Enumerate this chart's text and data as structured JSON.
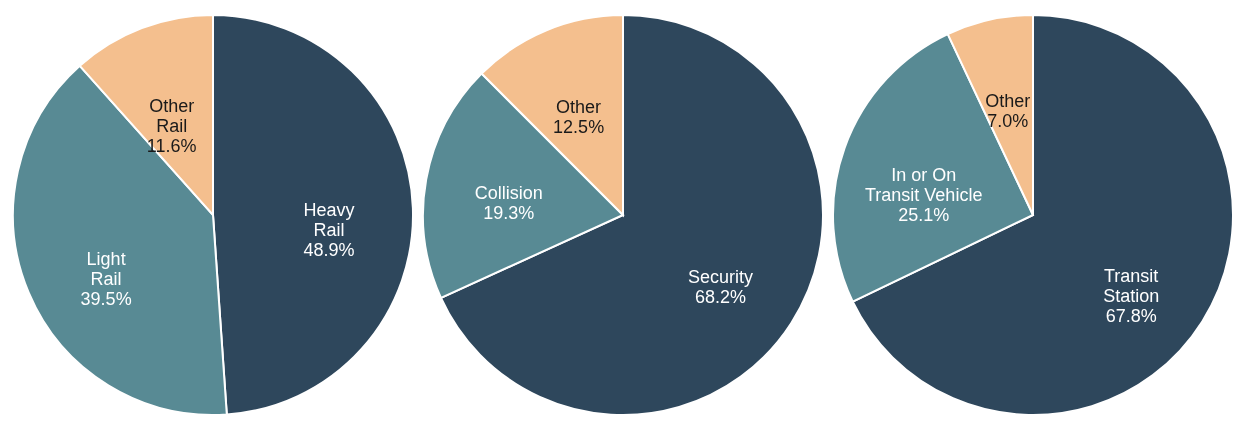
{
  "chart_data": [
    {
      "type": "pie",
      "categories": [
        "Heavy\nRail",
        "Light\nRail",
        "Other\nRail"
      ],
      "values": [
        48.9,
        39.5,
        11.6
      ],
      "value_labels": [
        "48.9%",
        "39.5%",
        "11.6%"
      ],
      "colors": [
        "#2e475c",
        "#588a94",
        "#f4bf8e"
      ],
      "legend": false
    },
    {
      "type": "pie",
      "categories": [
        "Security",
        "Collision",
        "Other"
      ],
      "values": [
        68.2,
        19.3,
        12.5
      ],
      "value_labels": [
        "68.2%",
        "19.3%",
        "12.5%"
      ],
      "colors": [
        "#2e475c",
        "#588a94",
        "#f4bf8e"
      ],
      "legend": false
    },
    {
      "type": "pie",
      "categories": [
        "Transit\nStation",
        "In or On\nTransit Vehicle",
        "Other"
      ],
      "values": [
        67.8,
        25.1,
        7.0
      ],
      "value_labels": [
        "67.8%",
        "25.1%",
        "7.0%"
      ],
      "colors": [
        "#2e475c",
        "#588a94",
        "#f4bf8e"
      ],
      "legend": false
    }
  ]
}
